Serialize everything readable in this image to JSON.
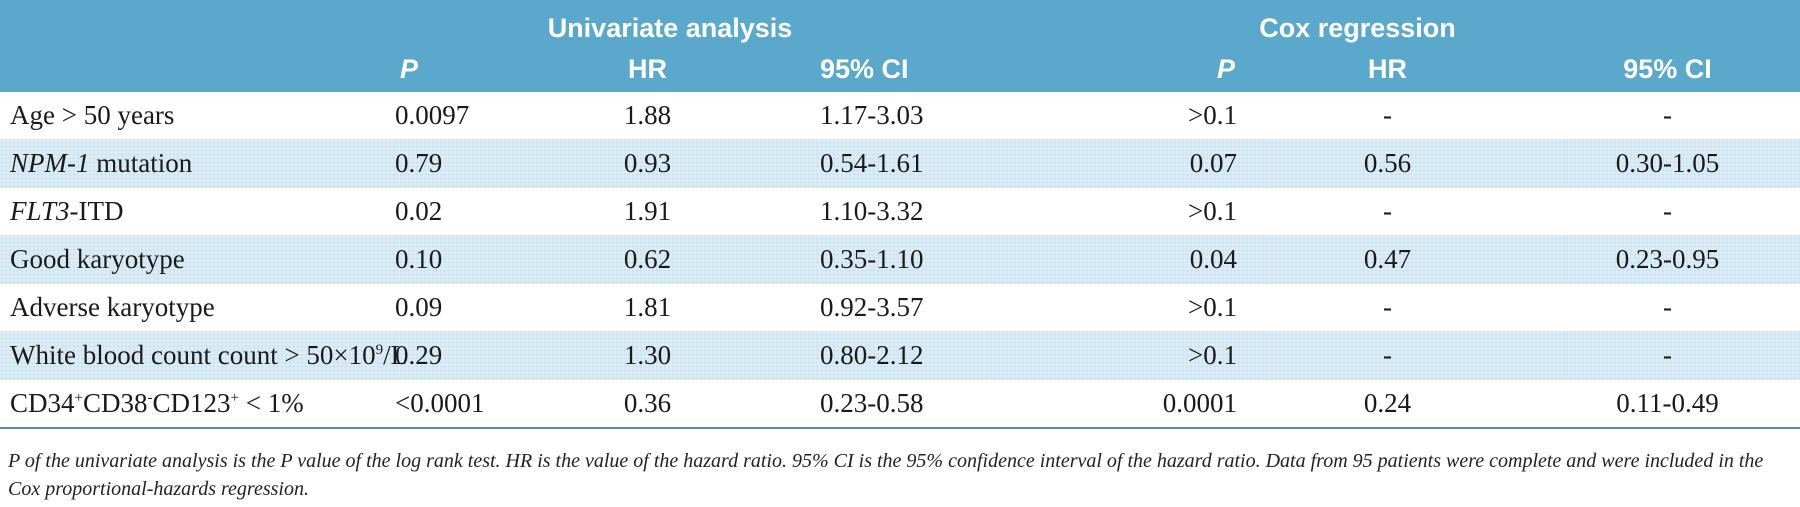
{
  "colors": {
    "header_bg": "#5aa9cc",
    "header_text": "#ffffff",
    "shaded_row": "#d9ecf5",
    "rule": "#4d8fb3"
  },
  "header": {
    "group_univariate": "Univariate analysis",
    "group_cox": "Cox regression",
    "col_p": "P",
    "col_hr": "HR",
    "col_ci": "95% CI"
  },
  "rows": [
    {
      "variable": "Age > 50 years",
      "uni_p": "0.0097",
      "uni_hr": "1.88",
      "uni_ci": "1.17-3.03",
      "cox_p": ">0.1",
      "cox_hr": "-",
      "cox_ci": "-"
    },
    {
      "variable_italic": "NPM-1",
      "variable_rest": " mutation",
      "uni_p": "0.79",
      "uni_hr": "0.93",
      "uni_ci": "0.54-1.61",
      "cox_p": "0.07",
      "cox_hr": "0.56",
      "cox_ci": "0.30-1.05"
    },
    {
      "variable_italic": "FLT3",
      "variable_rest": "-ITD",
      "uni_p": "0.02",
      "uni_hr": "1.91",
      "uni_ci": "1.10-3.32",
      "cox_p": ">0.1",
      "cox_hr": "-",
      "cox_ci": "-"
    },
    {
      "variable": "Good karyotype",
      "uni_p": "0.10",
      "uni_hr": "0.62",
      "uni_ci": "0.35-1.10",
      "cox_p": "0.04",
      "cox_hr": "0.47",
      "cox_ci": "0.23-0.95"
    },
    {
      "variable": "Adverse karyotype",
      "uni_p": "0.09",
      "uni_hr": "1.81",
      "uni_ci": "0.92-3.57",
      "cox_p": ">0.1",
      "cox_hr": "-",
      "cox_ci": "-"
    },
    {
      "variable_pre": "White blood count count > 50×10",
      "variable_sup": "9",
      "variable_post": "/L",
      "uni_p": "0.29",
      "uni_hr": "1.30",
      "uni_ci": "0.80-2.12",
      "cox_p": ">0.1",
      "cox_hr": "-",
      "cox_ci": "-"
    },
    {
      "variable_a": "CD34",
      "sup_a": "+",
      "variable_b": "CD38",
      "sup_b": "-",
      "variable_c": "CD123",
      "sup_c": "+",
      "variable_d": " < 1%",
      "uni_p": "<0.0001",
      "uni_hr": "0.36",
      "uni_ci": "0.23-0.58",
      "cox_p": "0.0001",
      "cox_hr": "0.24",
      "cox_ci": "0.11-0.49"
    }
  ],
  "footnote": "P of the univariate analysis is the P value of the log rank test. HR is the value of the hazard ratio. 95% CI is the 95% confidence interval of the hazard ratio. Data from 95 patients were complete and were included in the Cox proportional-hazards regression."
}
